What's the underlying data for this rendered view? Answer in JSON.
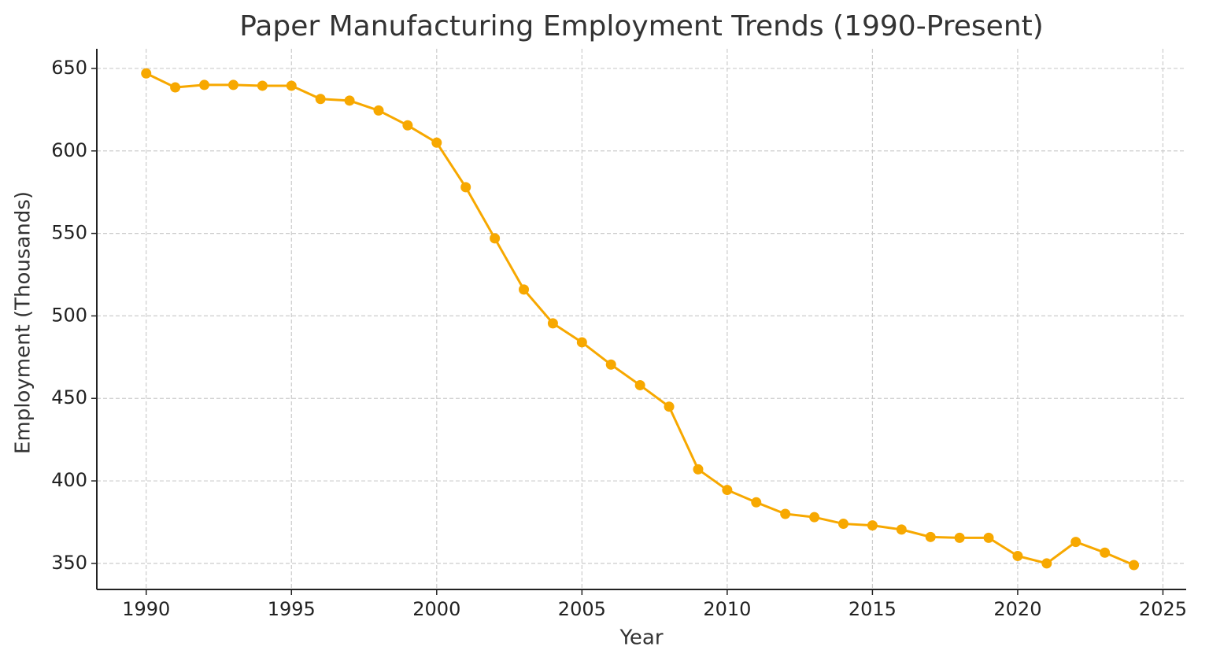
{
  "chart_data": {
    "type": "line",
    "title": "Paper Manufacturing Employment Trends (1990-Present)",
    "x_label": "Year",
    "y_label": "Employment (Thousands)",
    "x": [
      1990,
      1991,
      1992,
      1993,
      1994,
      1995,
      1996,
      1997,
      1998,
      1999,
      2000,
      2001,
      2002,
      2003,
      2004,
      2005,
      2006,
      2007,
      2008,
      2009,
      2010,
      2011,
      2012,
      2013,
      2014,
      2015,
      2016,
      2017,
      2018,
      2019,
      2020,
      2021,
      2022,
      2023,
      2024
    ],
    "series": [
      {
        "name": "Employment",
        "color": "#f7a800",
        "values": [
          647,
          638.5,
          640,
          640,
          639.5,
          639.5,
          631.5,
          630.5,
          624.5,
          615.5,
          605,
          578,
          547,
          516,
          495.5,
          484,
          470.5,
          458,
          445,
          407,
          394.5,
          387,
          380,
          378,
          374,
          373,
          370.5,
          366,
          365.5,
          365.5,
          354.5,
          350,
          363,
          356.5,
          349
        ]
      }
    ],
    "xlim": [
      1988.3,
      2025.8
    ],
    "xticks": [
      1990,
      1995,
      2000,
      2005,
      2010,
      2015,
      2020,
      2025
    ],
    "ylim": [
      334.2,
      661.9
    ],
    "yticks": [
      350,
      400,
      450,
      500,
      550,
      600,
      650
    ],
    "grid": true
  }
}
